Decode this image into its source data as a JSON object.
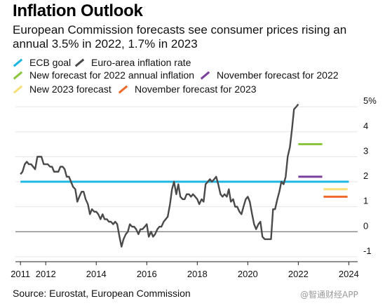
{
  "title": "Inflation Outlook",
  "subtitle": "European Commission forecasts see consumer prices rising an annual 3.5% in 2022, 1.7% in 2023",
  "source": "Source: Eurostat, European Commission",
  "watermark": "@智通财经APP",
  "legend": [
    {
      "label": "ECB goal",
      "color": "#1fb7e2"
    },
    {
      "label": "Euro-area inflation rate",
      "color": "#4a4a4a"
    },
    {
      "label": "New forecast for 2022 annual inflation",
      "color": "#8cc63f"
    },
    {
      "label": "November forecast for 2022",
      "color": "#7b3f9e"
    },
    {
      "label": "New 2023 forecast",
      "color": "#f7e078"
    },
    {
      "label": "November forecast for 2023",
      "color": "#ee6a2b"
    }
  ],
  "chart_data": {
    "type": "line",
    "title": "Inflation Outlook",
    "ylim": [
      -1.2,
      5.2
    ],
    "xlim": [
      2010.8,
      2024.35
    ],
    "y_ticks": [
      {
        "value": 5,
        "label": "5%"
      },
      {
        "value": 4,
        "label": "4"
      },
      {
        "value": 3,
        "label": "3"
      },
      {
        "value": 2,
        "label": "2"
      },
      {
        "value": 1,
        "label": "1"
      },
      {
        "value": 0,
        "label": "0"
      },
      {
        "value": -1,
        "label": "-1"
      }
    ],
    "x_ticks": [
      {
        "value": 2011,
        "label": "2011"
      },
      {
        "value": 2012,
        "label": "2012"
      },
      {
        "value": 2014,
        "label": "2014"
      },
      {
        "value": 2016,
        "label": "2016"
      },
      {
        "value": 2018,
        "label": "2018"
      },
      {
        "value": 2020,
        "label": "2020"
      },
      {
        "value": 2022,
        "label": "2022"
      },
      {
        "value": 2024,
        "label": "2024"
      }
    ],
    "grid": "horizontal",
    "series": [
      {
        "name": "Euro-area inflation rate",
        "color": "#4a4a4a",
        "x": [
          2011.0,
          2011.08,
          2011.17,
          2011.25,
          2011.33,
          2011.42,
          2011.5,
          2011.58,
          2011.67,
          2011.75,
          2011.83,
          2011.92,
          2012.0,
          2012.08,
          2012.17,
          2012.25,
          2012.33,
          2012.42,
          2012.5,
          2012.58,
          2012.67,
          2012.75,
          2012.83,
          2012.92,
          2013.0,
          2013.08,
          2013.17,
          2013.25,
          2013.33,
          2013.42,
          2013.5,
          2013.58,
          2013.67,
          2013.75,
          2013.83,
          2013.92,
          2014.0,
          2014.08,
          2014.17,
          2014.25,
          2014.33,
          2014.42,
          2014.5,
          2014.58,
          2014.67,
          2014.75,
          2014.83,
          2014.92,
          2015.0,
          2015.08,
          2015.17,
          2015.25,
          2015.33,
          2015.42,
          2015.5,
          2015.58,
          2015.67,
          2015.75,
          2015.83,
          2015.92,
          2016.0,
          2016.08,
          2016.17,
          2016.25,
          2016.33,
          2016.42,
          2016.5,
          2016.58,
          2016.67,
          2016.75,
          2016.83,
          2016.92,
          2017.0,
          2017.08,
          2017.17,
          2017.25,
          2017.33,
          2017.42,
          2017.5,
          2017.58,
          2017.67,
          2017.75,
          2017.83,
          2017.92,
          2018.0,
          2018.08,
          2018.17,
          2018.25,
          2018.33,
          2018.42,
          2018.5,
          2018.58,
          2018.67,
          2018.75,
          2018.83,
          2018.92,
          2019.0,
          2019.08,
          2019.17,
          2019.25,
          2019.33,
          2019.42,
          2019.5,
          2019.58,
          2019.67,
          2019.75,
          2019.83,
          2019.92,
          2020.0,
          2020.08,
          2020.17,
          2020.25,
          2020.33,
          2020.42,
          2020.5,
          2020.58,
          2020.67,
          2020.75,
          2020.83,
          2020.92,
          2021.0,
          2021.08,
          2021.17,
          2021.25,
          2021.33,
          2021.42,
          2021.5,
          2021.58,
          2021.67,
          2021.75,
          2021.83,
          2021.92,
          2022.0
        ],
        "values": [
          2.3,
          2.4,
          2.7,
          2.8,
          2.7,
          2.7,
          2.6,
          2.5,
          3.0,
          3.0,
          3.0,
          2.7,
          2.7,
          2.7,
          2.6,
          2.6,
          2.4,
          2.4,
          2.4,
          2.6,
          2.6,
          2.5,
          2.2,
          2.2,
          2.0,
          1.8,
          1.7,
          1.2,
          1.4,
          1.6,
          1.6,
          1.3,
          1.1,
          0.7,
          0.9,
          0.8,
          0.8,
          0.7,
          0.5,
          0.7,
          0.5,
          0.5,
          0.4,
          0.4,
          0.3,
          0.4,
          0.3,
          -0.2,
          -0.6,
          -0.3,
          -0.1,
          0.0,
          0.3,
          0.2,
          0.2,
          0.1,
          -0.1,
          0.1,
          0.1,
          0.2,
          0.3,
          -0.2,
          0.0,
          -0.2,
          -0.1,
          0.1,
          0.2,
          0.2,
          0.4,
          0.5,
          0.6,
          1.1,
          1.7,
          2.0,
          1.5,
          1.9,
          1.4,
          1.3,
          1.3,
          1.5,
          1.5,
          1.4,
          1.5,
          1.4,
          1.3,
          1.1,
          1.3,
          1.2,
          1.9,
          2.0,
          2.1,
          2.0,
          2.1,
          2.2,
          1.9,
          1.5,
          1.4,
          1.5,
          1.4,
          1.7,
          1.2,
          1.3,
          1.0,
          1.0,
          0.8,
          0.7,
          1.0,
          1.3,
          1.4,
          1.2,
          0.7,
          0.3,
          0.1,
          0.3,
          0.4,
          -0.2,
          -0.3,
          -0.3,
          -0.3,
          -0.3,
          0.9,
          0.9,
          1.3,
          1.6,
          2.0,
          1.9,
          2.2,
          3.0,
          3.4,
          4.1,
          4.9,
          5.0,
          5.1
        ]
      },
      {
        "name": "ECB goal",
        "color": "#1fb7e2",
        "x": [
          2011.0,
          2024.0
        ],
        "values": [
          2.0,
          2.0
        ]
      },
      {
        "name": "New forecast for 2022 annual inflation",
        "color": "#8cc63f",
        "x": [
          2022.0,
          2022.95
        ],
        "values": [
          3.5,
          3.5
        ]
      },
      {
        "name": "November forecast for 2022",
        "color": "#7b3f9e",
        "x": [
          2022.0,
          2022.95
        ],
        "values": [
          2.2,
          2.2
        ]
      },
      {
        "name": "New 2023 forecast",
        "color": "#f7e078",
        "x": [
          2023.0,
          2023.95
        ],
        "values": [
          1.7,
          1.7
        ]
      },
      {
        "name": "November forecast for 2023",
        "color": "#ee6a2b",
        "x": [
          2023.0,
          2023.95
        ],
        "values": [
          1.4,
          1.4
        ]
      }
    ]
  }
}
